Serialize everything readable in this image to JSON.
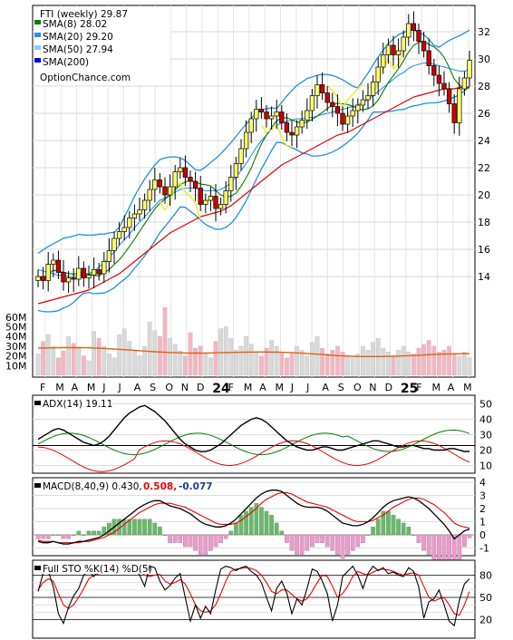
{
  "colors": {
    "sma8": "#008000",
    "sma20": "#1e90ff",
    "sma50": "#00ced1",
    "sma200": "#0000ff",
    "up_candle": "#ffff66",
    "down_candle": "#cc0000",
    "band": "#1f8fe0",
    "vol_up": "#d9d9d9",
    "vol_down": "#f4b6c2",
    "vol_avg": "#e06010",
    "adx": "#000000",
    "plus_di": "#008000",
    "minus_di": "#ee0000",
    "macd_line": "#000000",
    "signal_line": "#ee0000",
    "hist_pos": "#66bb66",
    "hist_neg": "#ee99cc",
    "sto_k": "#000000",
    "sto_d": "#ee0000"
  },
  "price_panel": {
    "title": "FTI (weekly) 29.87",
    "legend": [
      {
        "label": "SMA(8) 28.02",
        "color": "#008000"
      },
      {
        "label": "SMA(20) 29.20",
        "color": "#1e90ff"
      },
      {
        "label": "SMA(50) 27.94",
        "color": "#87cefa"
      },
      {
        "label": "SMA(200)",
        "color": "#0000ff"
      }
    ],
    "watermark": "OptionChance.com",
    "y_ticks": [
      "32",
      "30",
      "28",
      "26",
      "24",
      "22",
      "20",
      "18",
      "16",
      "14"
    ],
    "vol_ticks": [
      "60M",
      "50M",
      "40M",
      "30M",
      "20M",
      "10M"
    ]
  },
  "x_axis": {
    "labels": [
      "F",
      "M",
      "A",
      "M",
      "J",
      "J",
      "A",
      "S",
      "O",
      "N",
      "D",
      "24",
      "F",
      "M",
      "A",
      "M",
      "J",
      "J",
      "A",
      "S",
      "O",
      "N",
      "D",
      "25",
      "F",
      "M",
      "A",
      "M"
    ],
    "bold": [
      "24",
      "25"
    ]
  },
  "adx_panel": {
    "label": "ADX(14) 19.11",
    "y_ticks": [
      "50",
      "40",
      "30",
      "20",
      "10"
    ]
  },
  "macd_panel": {
    "label": "MACD(8,40,9) 0.430,",
    "value_signal": "0.508,",
    "value_hist": "-0.077",
    "y_ticks": [
      "4",
      "3",
      "2",
      "1",
      "0",
      "-1"
    ]
  },
  "sto_panel": {
    "label": "Full STO %K(14) %D(5)",
    "y_ticks": [
      "80",
      "50",
      "20"
    ]
  },
  "chart_data": {
    "type": "line",
    "ticker": "FTI",
    "period": "weekly",
    "price_range": [
      12,
      34
    ],
    "close": [
      14.0,
      13.7,
      14.9,
      15.2,
      14.3,
      13.6,
      13.9,
      13.8,
      14.6,
      13.9,
      14.1,
      14.5,
      14.2,
      15.1,
      15.9,
      16.8,
      17.3,
      17.6,
      18.3,
      18.6,
      18.9,
      19.6,
      20.4,
      21.1,
      20.6,
      20.0,
      20.6,
      21.7,
      22.0,
      21.3,
      21.0,
      20.5,
      19.3,
      19.6,
      19.9,
      19.0,
      19.3,
      20.3,
      21.3,
      22.3,
      23.4,
      24.6,
      25.6,
      26.3,
      26.1,
      25.6,
      25.8,
      26.1,
      25.3,
      24.6,
      24.4,
      25.0,
      25.5,
      26.2,
      27.3,
      28.1,
      27.5,
      26.8,
      26.5,
      26.0,
      25.2,
      25.8,
      26.2,
      26.6,
      27.0,
      27.3,
      28.3,
      29.4,
      30.3,
      31.0,
      30.3,
      30.6,
      31.6,
      32.6,
      32.1,
      31.3,
      30.6,
      29.5,
      28.8,
      28.2,
      27.8,
      26.7,
      25.3,
      27.8,
      28.6,
      29.9
    ],
    "sma20": [
      14.5,
      14.4,
      14.3,
      14.2,
      14.1,
      14.1,
      14.0,
      14.0,
      14.1,
      14.1,
      14.2,
      14.4,
      14.7,
      15.0,
      15.4,
      15.8,
      16.3,
      16.7,
      17.1,
      17.6,
      18.0,
      18.4,
      18.8,
      19.2,
      19.6,
      19.8,
      20.0,
      20.2,
      20.4,
      20.5,
      20.5,
      20.5,
      20.4,
      20.3,
      20.3,
      20.3,
      20.4,
      20.6,
      20.9,
      21.3,
      21.8,
      22.3,
      22.9,
      23.5,
      24.0,
      24.4,
      24.8,
      25.1,
      25.3,
      25.4,
      25.5,
      25.6,
      25.6,
      25.7,
      25.7,
      25.8,
      25.9,
      26.0,
      26.1,
      26.2,
      26.3,
      26.4,
      26.5,
      26.6,
      26.8,
      27.0,
      27.3,
      27.6,
      27.9,
      28.2,
      28.5,
      28.8,
      29.0,
      29.3,
      29.5,
      29.6,
      29.7,
      29.7,
      29.6,
      29.5,
      29.4,
      29.3,
      29.2,
      29.1,
      29.1,
      29.2
    ],
    "sma50": [
      12.0,
      12.1,
      12.2,
      12.3,
      12.4,
      12.5,
      12.6,
      12.7,
      12.8,
      12.9,
      13.0,
      13.2,
      13.4,
      13.6,
      13.8,
      14.0,
      14.2,
      14.5,
      14.8,
      15.1,
      15.4,
      15.7,
      16.0,
      16.3,
      16.6,
      16.9,
      17.2,
      17.4,
      17.6,
      17.8,
      18.0,
      18.2,
      18.4,
      18.5,
      18.6,
      18.7,
      18.8,
      19.0,
      19.2,
      19.5,
      19.8,
      20.1,
      20.4,
      20.7,
      21.0,
      21.3,
      21.6,
      21.9,
      22.2,
      22.4,
      22.6,
      22.8,
      23.0,
      23.2,
      23.4,
      23.6,
      23.8,
      24.0,
      24.2,
      24.4,
      24.5,
      24.6,
      24.8,
      25.0,
      25.2,
      25.4,
      25.6,
      25.8,
      26.0,
      26.2,
      26.4,
      26.6,
      26.8,
      27.0,
      27.2,
      27.3,
      27.4,
      27.5,
      27.6,
      27.7,
      27.8,
      27.8,
      27.8,
      27.9,
      27.9,
      27.94
    ],
    "adx": [
      27,
      29,
      31,
      33,
      34,
      33,
      31,
      29,
      27,
      25,
      24,
      23,
      24,
      26,
      29,
      33,
      37,
      41,
      44,
      46,
      48,
      49,
      47,
      45,
      42,
      39,
      35,
      31,
      27,
      24,
      22,
      20,
      19,
      19,
      20,
      22,
      24,
      27,
      30,
      33,
      36,
      38,
      40,
      41,
      40,
      38,
      35,
      32,
      29,
      26,
      24,
      22,
      21,
      20,
      20,
      21,
      22,
      22,
      21,
      20,
      20,
      21,
      22,
      23,
      24,
      25,
      26,
      26,
      25,
      24,
      23,
      22,
      22,
      23,
      23,
      22,
      21,
      21,
      20,
      20,
      20,
      21,
      21,
      20,
      19,
      19.11
    ],
    "macd": [
      -0.5,
      -0.6,
      -0.6,
      -0.5,
      -0.6,
      -0.7,
      -0.7,
      -0.6,
      -0.5,
      -0.5,
      -0.4,
      -0.3,
      -0.2,
      0.0,
      0.3,
      0.6,
      0.9,
      1.2,
      1.5,
      1.8,
      2.1,
      2.3,
      2.5,
      2.6,
      2.6,
      2.4,
      2.2,
      2.1,
      2.0,
      1.8,
      1.6,
      1.3,
      1.0,
      0.8,
      0.7,
      0.6,
      0.6,
      0.7,
      0.9,
      1.2,
      1.6,
      2.0,
      2.4,
      2.8,
      3.1,
      3.3,
      3.4,
      3.4,
      3.3,
      3.0,
      2.7,
      2.4,
      2.2,
      2.1,
      2.1,
      2.1,
      2.0,
      1.8,
      1.5,
      1.2,
      0.9,
      0.8,
      0.7,
      0.7,
      0.8,
      1.0,
      1.3,
      1.7,
      2.1,
      2.4,
      2.6,
      2.7,
      2.8,
      2.9,
      2.8,
      2.6,
      2.3,
      2.0,
      1.6,
      1.2,
      0.8,
      0.3,
      -0.3,
      0.0,
      0.3,
      0.43
    ],
    "signal": [
      -0.4,
      -0.5,
      -0.5,
      -0.5,
      -0.6,
      -0.6,
      -0.6,
      -0.6,
      -0.6,
      -0.5,
      -0.5,
      -0.4,
      -0.3,
      -0.2,
      0.0,
      0.2,
      0.5,
      0.8,
      1.1,
      1.4,
      1.7,
      1.9,
      2.1,
      2.3,
      2.4,
      2.4,
      2.4,
      2.3,
      2.2,
      2.1,
      1.9,
      1.7,
      1.5,
      1.3,
      1.1,
      0.9,
      0.8,
      0.8,
      0.8,
      0.9,
      1.1,
      1.4,
      1.7,
      2.0,
      2.4,
      2.7,
      2.9,
      3.1,
      3.2,
      3.2,
      3.1,
      2.9,
      2.7,
      2.5,
      2.4,
      2.3,
      2.2,
      2.1,
      1.9,
      1.7,
      1.5,
      1.3,
      1.1,
      1.0,
      1.0,
      1.0,
      1.1,
      1.3,
      1.5,
      1.8,
      2.1,
      2.3,
      2.5,
      2.7,
      2.8,
      2.8,
      2.7,
      2.5,
      2.3,
      2.0,
      1.7,
      1.3,
      0.9,
      0.7,
      0.6,
      0.508
    ],
    "sto_k": [
      58,
      82,
      86,
      64,
      28,
      15,
      37,
      52,
      62,
      80,
      86,
      78,
      88,
      90,
      92,
      85,
      88,
      92,
      86,
      90,
      80,
      65,
      92,
      90,
      72,
      60,
      66,
      76,
      82,
      50,
      18,
      40,
      22,
      38,
      28,
      60,
      88,
      92,
      90,
      86,
      90,
      92,
      85,
      80,
      70,
      50,
      32,
      62,
      72,
      56,
      28,
      48,
      40,
      62,
      88,
      85,
      72,
      55,
      18,
      40,
      78,
      85,
      92,
      80,
      62,
      82,
      92,
      86,
      90,
      82,
      84,
      80,
      78,
      90,
      85,
      64,
      22,
      44,
      48,
      60,
      40,
      18,
      12,
      46,
      68,
      75
    ],
    "sto_d": [
      60,
      70,
      75,
      72,
      55,
      40,
      35,
      40,
      50,
      62,
      75,
      80,
      82,
      85,
      88,
      89,
      88,
      89,
      89,
      89,
      87,
      80,
      78,
      80,
      81,
      72,
      68,
      70,
      74,
      68,
      55,
      40,
      32,
      30,
      32,
      40,
      55,
      72,
      85,
      88,
      89,
      90,
      89,
      86,
      80,
      70,
      58,
      55,
      60,
      60,
      54,
      48,
      45,
      48,
      58,
      70,
      80,
      78,
      65,
      50,
      55,
      65,
      78,
      85,
      82,
      80,
      84,
      87,
      88,
      87,
      85,
      82,
      80,
      82,
      83,
      80,
      65,
      50,
      45,
      48,
      50,
      40,
      28,
      26,
      40,
      58
    ]
  }
}
